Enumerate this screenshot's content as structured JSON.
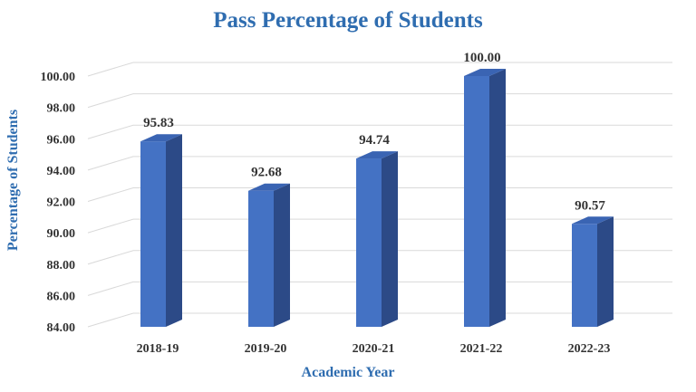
{
  "chart_data": {
    "type": "bar",
    "title": "Pass Percentage of Students",
    "xlabel": "Academic Year",
    "ylabel": "Percentage of Students",
    "categories": [
      "2018-19",
      "2019-20",
      "2020-21",
      "2021-22",
      "2022-23"
    ],
    "values": [
      95.83,
      92.68,
      94.74,
      100.0,
      90.57
    ],
    "value_labels": [
      "95.83",
      "92.68",
      "94.74",
      "100.00",
      "90.57"
    ],
    "ylim": [
      84,
      100
    ],
    "yticks": [
      "84.00",
      "86.00",
      "88.00",
      "90.00",
      "92.00",
      "94.00",
      "96.00",
      "98.00",
      "100.00"
    ],
    "grid": true,
    "style": "3d-column",
    "colors": {
      "bar_front": "#4472c4",
      "bar_side": "#2c4a87",
      "bar_top": "#3a64b3",
      "text_accent": "#2f6db0"
    }
  }
}
